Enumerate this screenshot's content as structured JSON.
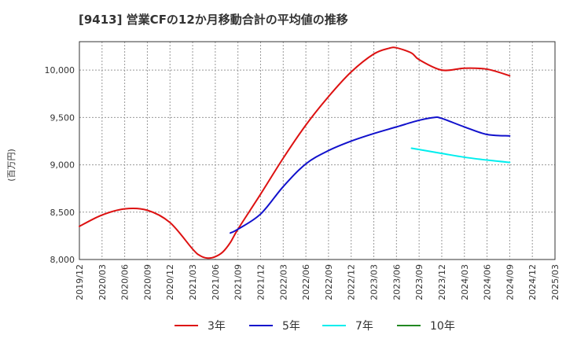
{
  "chart_data": {
    "type": "line",
    "title": "[9413]  営業CFの12か月移動合計の平均値の推移",
    "ylabel": "(百万円)",
    "xlabel": "",
    "ylim": [
      8000,
      10300
    ],
    "yticks": [
      8000,
      8500,
      9000,
      9500,
      10000
    ],
    "ytick_labels": [
      "8,000",
      "8,500",
      "9,000",
      "9,500",
      "10,000"
    ],
    "xticks": [
      "2019/12",
      "2020/03",
      "2020/06",
      "2020/09",
      "2020/12",
      "2021/03",
      "2021/06",
      "2021/09",
      "2021/12",
      "2022/03",
      "2022/06",
      "2022/09",
      "2022/12",
      "2023/03",
      "2023/06",
      "2023/09",
      "2023/12",
      "2024/03",
      "2024/06",
      "2024/09",
      "2024/12",
      "2025/03"
    ],
    "grid": true,
    "legend_position": "bottom",
    "series": [
      {
        "name": "3年",
        "color": "#dd1111",
        "x": [
          "2019/12",
          "2020/03",
          "2020/06",
          "2020/09",
          "2020/12",
          "2021/03",
          "2021/04",
          "2021/05",
          "2021/06",
          "2021/07",
          "2021/08",
          "2021/09",
          "2021/12",
          "2022/03",
          "2022/06",
          "2022/09",
          "2022/12",
          "2023/03",
          "2023/05",
          "2023/06",
          "2023/08",
          "2023/09",
          "2023/12",
          "2024/03",
          "2024/06",
          "2024/09"
        ],
        "values": [
          8350,
          8470,
          8535,
          8520,
          8390,
          8110,
          8040,
          8015,
          8030,
          8080,
          8180,
          8320,
          8690,
          9070,
          9420,
          9720,
          9980,
          10170,
          10230,
          10235,
          10180,
          10110,
          10000,
          10020,
          10010,
          9940
        ]
      },
      {
        "name": "5年",
        "color": "#1111cc",
        "x": [
          "2021/08",
          "2021/09",
          "2021/12",
          "2022/03",
          "2022/06",
          "2022/09",
          "2022/12",
          "2023/03",
          "2023/06",
          "2023/09",
          "2023/11",
          "2023/12",
          "2024/03",
          "2024/06",
          "2024/09"
        ],
        "values": [
          8280,
          8320,
          8480,
          8770,
          9010,
          9150,
          9250,
          9330,
          9400,
          9470,
          9500,
          9490,
          9400,
          9320,
          9305
        ]
      },
      {
        "name": "7年",
        "color": "#00eeee",
        "x": [
          "2023/08",
          "2023/12",
          "2024/03",
          "2024/06",
          "2024/09"
        ],
        "values": [
          9175,
          9120,
          9080,
          9050,
          9025
        ]
      },
      {
        "name": "10年",
        "color": "#228822",
        "x": [],
        "values": []
      }
    ]
  }
}
